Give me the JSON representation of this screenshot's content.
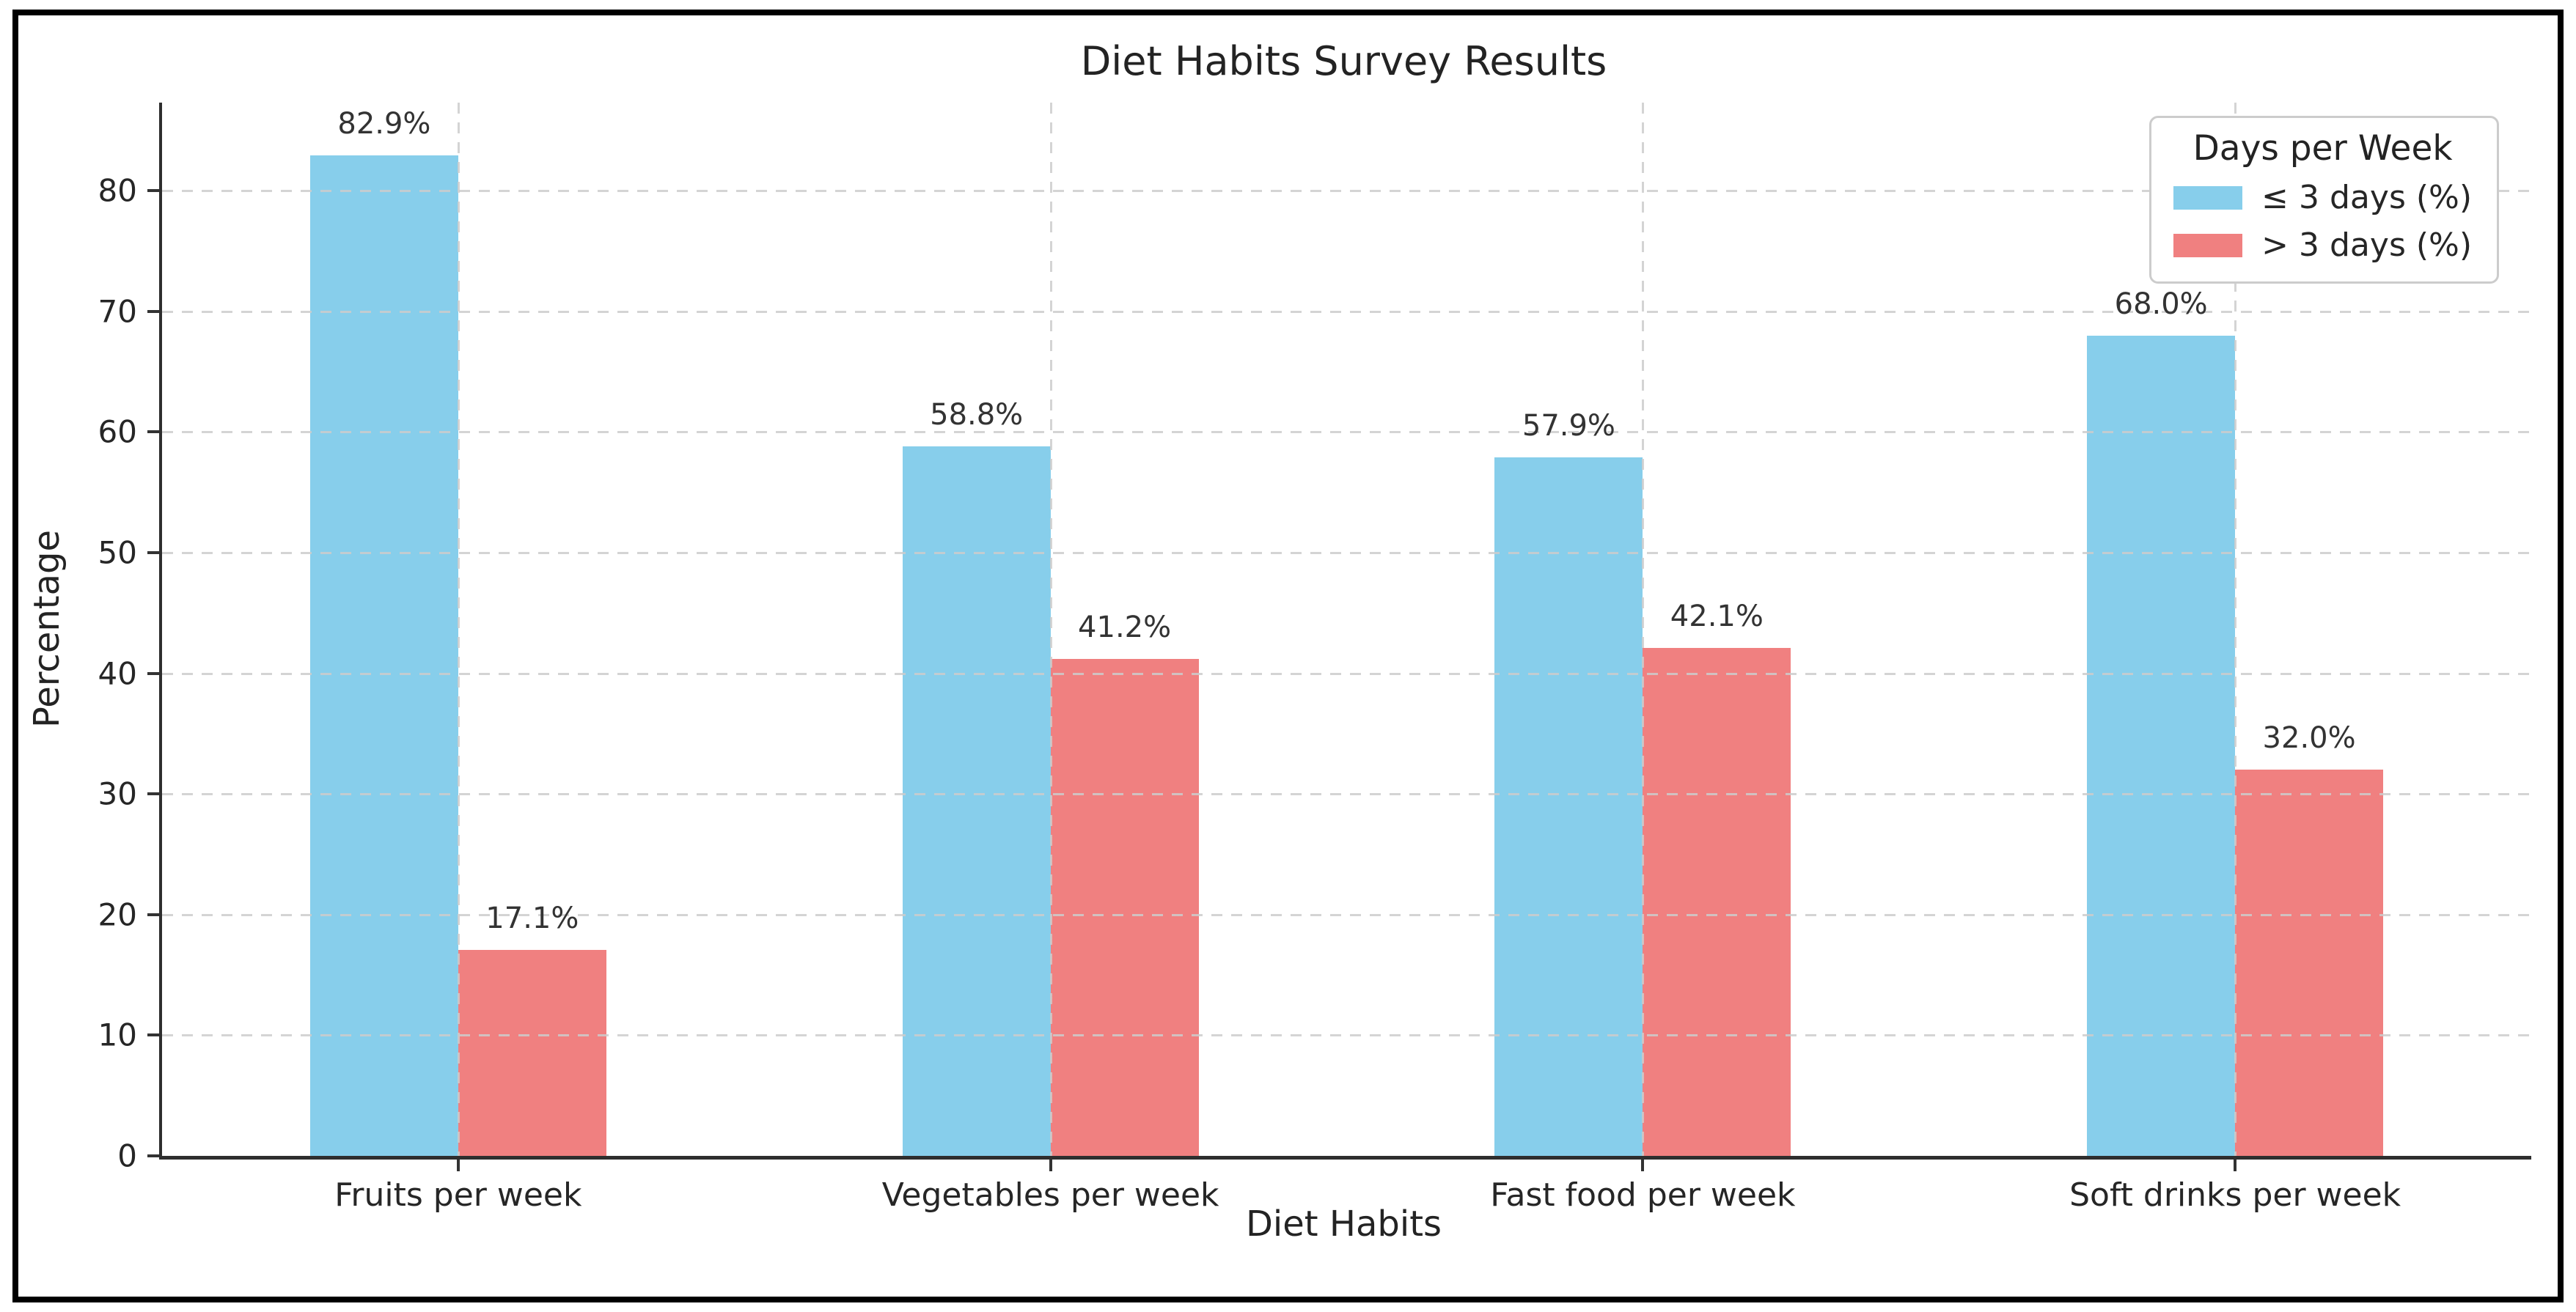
{
  "figure": {
    "title": "Diet Habits Survey Results",
    "xlabel": "Diet Habits",
    "ylabel": "Percentage"
  },
  "legend": {
    "title": "Days per Week",
    "entries": [
      {
        "label": "≤ 3 days (%)",
        "color": "#87CEEB"
      },
      {
        "label": "> 3 days (%)",
        "color": "#F08080"
      }
    ]
  },
  "chart_data": {
    "type": "bar",
    "title": "Diet Habits Survey Results",
    "xlabel": "Diet Habits",
    "ylabel": "Percentage",
    "categories": [
      "Fruits per week",
      "Vegetables per week",
      "Fast food per week",
      "Soft drinks per week"
    ],
    "series": [
      {
        "name": "≤ 3 days (%)",
        "color": "#87CEEB",
        "values": [
          82.9,
          58.8,
          57.9,
          68.0
        ]
      },
      {
        "name": "> 3 days (%)",
        "color": "#F08080",
        "values": [
          17.1,
          41.2,
          42.1,
          32.0
        ]
      }
    ],
    "value_labels": [
      [
        "82.9%",
        "58.8%",
        "57.9%",
        "68.0%"
      ],
      [
        "17.1%",
        "41.2%",
        "42.1%",
        "32.0%"
      ]
    ],
    "yticks": [
      0,
      10,
      20,
      30,
      40,
      50,
      60,
      70,
      80
    ],
    "ylim": [
      0,
      87.3
    ],
    "xlim": [
      -0.5,
      3.5
    ],
    "bar_width_units": 0.25,
    "grid": "dashed, horizontal at yticks and vertical at category centers, drawn over bars",
    "legend_title": "Days per Week",
    "legend_position": "upper right"
  },
  "colors": {
    "bar_blue": "#87CEEB",
    "bar_red": "#F08080",
    "grid": "#cccccc",
    "spine": "#2e2e2e",
    "text": "#262626",
    "legend_border": "#cccccc",
    "frame": "#000000",
    "background": "#ffffff"
  }
}
